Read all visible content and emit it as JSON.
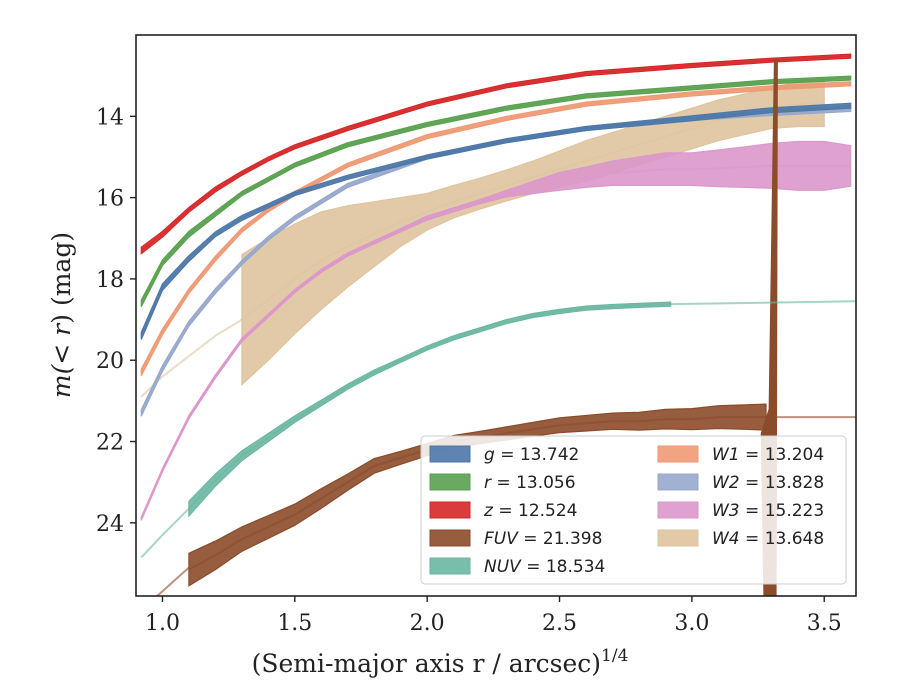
{
  "chart_data": {
    "type": "line",
    "xlabel": "(Semi-major axis r / arcsec)",
    "xlabel_exp": "1/4",
    "ylabel_prefix": "m(< ",
    "ylabel_var": "r",
    "ylabel_suffix": ") (mag)",
    "xlim": [
      0.9,
      3.62
    ],
    "ylim": [
      25.8,
      12.0
    ],
    "y_inverted": true,
    "xticks": [
      "1.0",
      "1.5",
      "2.0",
      "2.5",
      "3.0",
      "3.5"
    ],
    "yticks": [
      "14",
      "16",
      "18",
      "20",
      "22",
      "24"
    ],
    "legend_position": "lower-right",
    "series": [
      {
        "name": "g",
        "value": "13.742",
        "color": "#4c78a8",
        "x": [
          0.92,
          1.0,
          1.1,
          1.2,
          1.3,
          1.4,
          1.5,
          1.7,
          2.0,
          2.3,
          2.6,
          3.0,
          3.3,
          3.6
        ],
        "y": [
          19.4,
          18.2,
          17.5,
          16.9,
          16.5,
          16.2,
          15.9,
          15.5,
          15.0,
          14.6,
          14.3,
          14.05,
          13.85,
          13.74
        ],
        "band": [
          0.09,
          0.08,
          0.07,
          0.06,
          0.06,
          0.05,
          0.05,
          0.05,
          0.05,
          0.05,
          0.05,
          0.06,
          0.06,
          0.06
        ]
      },
      {
        "name": "r",
        "value": "13.056",
        "color": "#59a14f",
        "x": [
          0.92,
          1.0,
          1.1,
          1.2,
          1.3,
          1.4,
          1.5,
          1.7,
          2.0,
          2.3,
          2.6,
          3.0,
          3.3,
          3.6
        ],
        "y": [
          18.6,
          17.6,
          16.9,
          16.4,
          15.9,
          15.55,
          15.2,
          14.7,
          14.2,
          13.8,
          13.5,
          13.3,
          13.15,
          13.06
        ],
        "band": [
          0.08,
          0.07,
          0.07,
          0.06,
          0.05,
          0.05,
          0.05,
          0.05,
          0.05,
          0.05,
          0.05,
          0.05,
          0.05,
          0.05
        ]
      },
      {
        "name": "z",
        "value": "12.524",
        "color": "#d62728",
        "x": [
          0.92,
          1.0,
          1.1,
          1.2,
          1.3,
          1.4,
          1.5,
          1.7,
          2.0,
          2.3,
          2.6,
          3.0,
          3.3,
          3.6
        ],
        "y": [
          17.3,
          16.9,
          16.3,
          15.8,
          15.4,
          15.05,
          14.75,
          14.3,
          13.7,
          13.25,
          12.95,
          12.75,
          12.62,
          12.52
        ],
        "band": [
          0.08,
          0.07,
          0.06,
          0.06,
          0.05,
          0.05,
          0.05,
          0.05,
          0.05,
          0.05,
          0.05,
          0.05,
          0.05,
          0.05
        ]
      },
      {
        "name": "FUV",
        "value": "21.398",
        "color": "#8c4b2a",
        "x": [
          1.1,
          1.2,
          1.3,
          1.4,
          1.5,
          1.6,
          1.7,
          1.8,
          1.9,
          2.0,
          2.1,
          2.2,
          2.3,
          2.4,
          2.5,
          2.6,
          2.7,
          2.8,
          2.9,
          3.0,
          3.1,
          3.2,
          3.28
        ],
        "y": [
          25.15,
          24.8,
          24.4,
          24.1,
          23.8,
          23.4,
          23.0,
          22.6,
          22.4,
          22.2,
          22.0,
          21.9,
          21.8,
          21.7,
          21.6,
          21.55,
          21.5,
          21.5,
          21.45,
          21.45,
          21.4,
          21.4,
          21.4
        ],
        "band": [
          0.4,
          0.35,
          0.3,
          0.28,
          0.26,
          0.24,
          0.2,
          0.18,
          0.16,
          0.15,
          0.15,
          0.15,
          0.16,
          0.17,
          0.18,
          0.19,
          0.2,
          0.22,
          0.24,
          0.26,
          0.28,
          0.3,
          0.32
        ]
      },
      {
        "name": "NUV",
        "value": "18.534",
        "color": "#6ab7a1",
        "x": [
          1.1,
          1.2,
          1.3,
          1.4,
          1.5,
          1.6,
          1.7,
          1.8,
          1.9,
          2.0,
          2.1,
          2.2,
          2.3,
          2.4,
          2.5,
          2.6,
          2.7,
          2.8,
          2.92
        ],
        "y": [
          23.65,
          22.95,
          22.35,
          21.9,
          21.45,
          21.05,
          20.65,
          20.3,
          20.0,
          19.7,
          19.45,
          19.25,
          19.05,
          18.9,
          18.8,
          18.72,
          18.68,
          18.65,
          18.62
        ],
        "band": [
          0.18,
          0.15,
          0.12,
          0.1,
          0.08,
          0.07,
          0.06,
          0.06,
          0.05,
          0.05,
          0.05,
          0.05,
          0.05,
          0.05,
          0.05,
          0.05,
          0.05,
          0.05,
          0.05
        ]
      },
      {
        "name": "W1",
        "value": "13.204",
        "color": "#ee9a74",
        "x": [
          0.92,
          1.0,
          1.1,
          1.2,
          1.3,
          1.4,
          1.5,
          1.7,
          2.0,
          2.3,
          2.6,
          3.0,
          3.3,
          3.6
        ],
        "y": [
          20.3,
          19.3,
          18.3,
          17.5,
          16.8,
          16.3,
          15.9,
          15.2,
          14.5,
          14.05,
          13.7,
          13.45,
          13.3,
          13.2
        ],
        "band": [
          0.08,
          0.07,
          0.06,
          0.06,
          0.05,
          0.05,
          0.05,
          0.05,
          0.05,
          0.05,
          0.05,
          0.05,
          0.05,
          0.05
        ]
      },
      {
        "name": "W2",
        "value": "13.828",
        "color": "#98a8cc",
        "x": [
          0.92,
          1.0,
          1.1,
          1.2,
          1.3,
          1.4,
          1.5,
          1.7,
          2.0,
          2.3,
          2.6,
          3.0,
          3.3,
          3.6
        ],
        "y": [
          21.3,
          20.2,
          19.1,
          18.3,
          17.6,
          17.0,
          16.5,
          15.7,
          15.0,
          14.6,
          14.3,
          14.05,
          13.93,
          13.83
        ],
        "band": [
          0.08,
          0.07,
          0.06,
          0.06,
          0.05,
          0.05,
          0.05,
          0.05,
          0.05,
          0.05,
          0.05,
          0.05,
          0.05,
          0.05
        ]
      },
      {
        "name": "W3",
        "value": "15.223",
        "color": "#dc97cb",
        "x": [
          0.92,
          1.0,
          1.1,
          1.2,
          1.3,
          1.4,
          1.5,
          1.6,
          1.7,
          1.8,
          1.9,
          2.0,
          2.1,
          2.2,
          2.3,
          2.4,
          2.5,
          2.6,
          2.7,
          2.8,
          2.9,
          3.0,
          3.1,
          3.2,
          3.3,
          3.4,
          3.5,
          3.6
        ],
        "y": [
          23.9,
          22.7,
          21.4,
          20.4,
          19.5,
          18.9,
          18.3,
          17.8,
          17.4,
          17.1,
          16.8,
          16.5,
          16.3,
          16.1,
          15.9,
          15.75,
          15.6,
          15.5,
          15.4,
          15.35,
          15.3,
          15.3,
          15.28,
          15.25,
          15.22,
          15.22,
          15.22,
          15.22
        ],
        "band": [
          0.04,
          0.04,
          0.04,
          0.04,
          0.04,
          0.04,
          0.04,
          0.04,
          0.04,
          0.04,
          0.04,
          0.05,
          0.05,
          0.05,
          0.08,
          0.15,
          0.22,
          0.25,
          0.3,
          0.35,
          0.4,
          0.4,
          0.45,
          0.5,
          0.55,
          0.6,
          0.6,
          0.5
        ]
      },
      {
        "name": "W4",
        "value": "13.648",
        "color": "#dfc49e",
        "x": [
          0.92,
          1.0,
          1.1,
          1.2,
          1.3,
          1.4,
          1.5,
          1.6,
          1.7,
          1.8,
          1.9,
          2.0,
          2.1,
          2.2,
          2.3,
          2.4,
          2.5,
          2.6,
          2.7,
          2.8,
          2.9,
          3.0,
          3.1,
          3.2,
          3.3,
          3.4,
          3.5
        ],
        "y": [
          20.9,
          20.4,
          19.9,
          19.4,
          19.0,
          18.5,
          18.0,
          17.55,
          17.2,
          16.9,
          16.6,
          16.35,
          16.1,
          15.9,
          15.7,
          15.5,
          15.3,
          15.1,
          14.9,
          14.7,
          14.5,
          14.3,
          14.1,
          13.95,
          13.8,
          13.7,
          13.65
        ],
        "band": [
          0.04,
          0.04,
          0.04,
          0.04,
          1.6,
          1.5,
          1.35,
          1.2,
          1.0,
          0.8,
          0.6,
          0.45,
          0.4,
          0.38,
          0.38,
          0.4,
          0.45,
          0.5,
          0.5,
          0.5,
          0.5,
          0.5,
          0.5,
          0.5,
          0.5,
          0.55,
          0.6
        ],
        "band_start_x": 1.28
      }
    ]
  }
}
